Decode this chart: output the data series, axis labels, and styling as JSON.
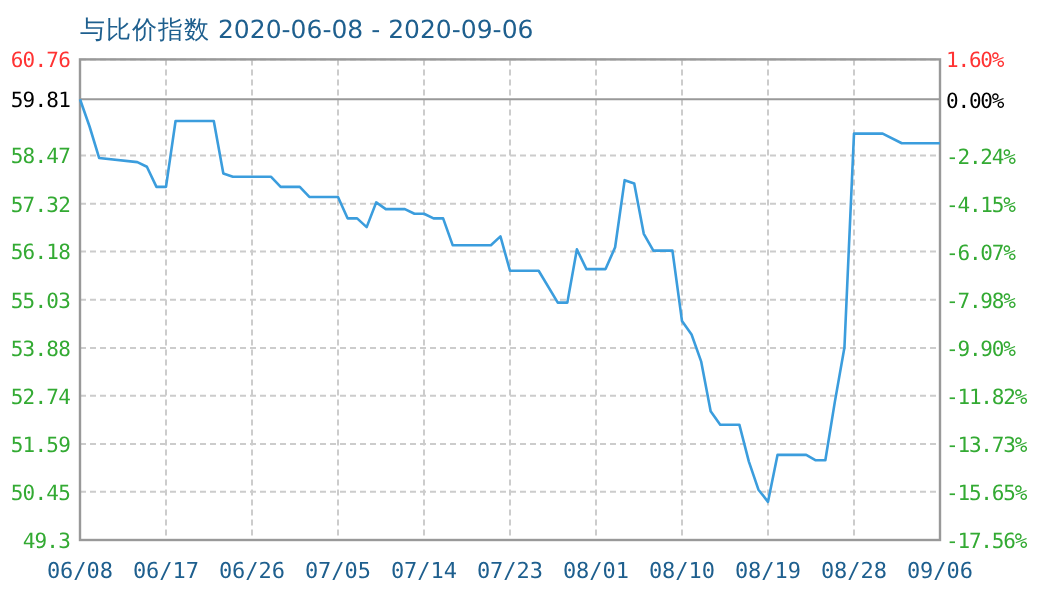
{
  "chart_data": {
    "type": "line",
    "title": "与比价指数 2020-06-08 - 2020-09-06",
    "color": "#3b9ddd",
    "grid": true,
    "x": [
      "2020-06-08",
      "2020-06-09",
      "2020-06-10",
      "2020-06-14",
      "2020-06-15",
      "2020-06-16",
      "2020-06-17",
      "2020-06-18",
      "2020-06-22",
      "2020-06-23",
      "2020-06-24",
      "2020-06-28",
      "2020-06-29",
      "2020-07-01",
      "2020-07-02",
      "2020-07-05",
      "2020-07-06",
      "2020-07-07",
      "2020-07-08",
      "2020-07-09",
      "2020-07-10",
      "2020-07-12",
      "2020-07-13",
      "2020-07-14",
      "2020-07-15",
      "2020-07-16",
      "2020-07-17",
      "2020-07-21",
      "2020-07-22",
      "2020-07-23",
      "2020-07-26",
      "2020-07-28",
      "2020-07-29",
      "2020-07-30",
      "2020-07-31",
      "2020-08-02",
      "2020-08-03",
      "2020-08-04",
      "2020-08-05",
      "2020-08-06",
      "2020-08-07",
      "2020-08-09",
      "2020-08-10",
      "2020-08-11",
      "2020-08-12",
      "2020-08-13",
      "2020-08-14",
      "2020-08-16",
      "2020-08-17",
      "2020-08-18",
      "2020-08-19",
      "2020-08-20",
      "2020-08-23",
      "2020-08-24",
      "2020-08-25",
      "2020-08-26",
      "2020-08-27",
      "2020-08-28",
      "2020-08-31",
      "2020-09-02",
      "2020-09-06"
    ],
    "values": [
      59.81,
      59.16,
      58.41,
      58.31,
      58.2,
      57.72,
      57.72,
      59.29,
      59.29,
      58.04,
      57.96,
      57.96,
      57.72,
      57.72,
      57.48,
      57.48,
      56.97,
      56.97,
      56.76,
      57.35,
      57.19,
      57.19,
      57.08,
      57.08,
      56.97,
      56.97,
      56.33,
      56.33,
      56.54,
      55.72,
      55.72,
      54.96,
      54.96,
      56.23,
      55.76,
      55.76,
      56.28,
      57.88,
      57.8,
      56.6,
      56.2,
      56.2,
      54.52,
      54.2,
      53.56,
      52.37,
      52.05,
      52.05,
      51.17,
      50.5,
      50.21,
      51.33,
      51.33,
      51.2,
      51.2,
      52.6,
      53.89,
      58.99,
      58.99,
      58.76,
      58.76
    ],
    "xlim": [
      "2020-06-08",
      "2020-09-06"
    ],
    "xticks": [
      {
        "value": "2020-06-08",
        "label": "06/08"
      },
      {
        "value": "2020-06-17",
        "label": "06/17"
      },
      {
        "value": "2020-06-26",
        "label": "06/26"
      },
      {
        "value": "2020-07-05",
        "label": "07/05"
      },
      {
        "value": "2020-07-14",
        "label": "07/14"
      },
      {
        "value": "2020-07-23",
        "label": "07/23"
      },
      {
        "value": "2020-08-01",
        "label": "08/01"
      },
      {
        "value": "2020-08-10",
        "label": "08/10"
      },
      {
        "value": "2020-08-19",
        "label": "08/19"
      },
      {
        "value": "2020-08-28",
        "label": "08/28"
      },
      {
        "value": "2020-09-06",
        "label": "09/06"
      }
    ],
    "ylim": [
      49.3,
      60.76
    ],
    "yticks": [
      49.3,
      50.45,
      51.59,
      52.74,
      53.88,
      55.03,
      56.18,
      57.32,
      58.47,
      60.76
    ],
    "y2lim": [
      -17.56,
      1.6
    ],
    "y2ticks": [
      {
        "value": -17.56,
        "label": "-17.56%"
      },
      {
        "value": -15.65,
        "label": "-15.65%"
      },
      {
        "value": -13.73,
        "label": "-13.73%"
      },
      {
        "value": -11.82,
        "label": "-11.82%"
      },
      {
        "value": -9.9,
        "label": "-9.90%"
      },
      {
        "value": -7.98,
        "label": "-7.98%"
      },
      {
        "value": -6.07,
        "label": "-6.07%"
      },
      {
        "value": -4.15,
        "label": "-4.15%"
      },
      {
        "value": -2.24,
        "label": "-2.24%"
      },
      {
        "value": 0,
        "label": "0.00%"
      },
      {
        "value": 1.6,
        "label": "1.60%"
      }
    ],
    "ref_lines": [
      {
        "axis": "y",
        "value": 59.81,
        "label": "59.81"
      }
    ]
  }
}
